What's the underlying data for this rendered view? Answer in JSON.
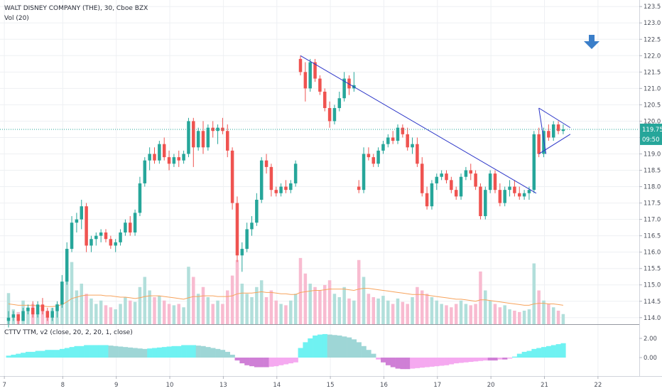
{
  "legend": {
    "main": "WALT DISNEY COMPANY (THE), 30, Cboe BZX",
    "volume": "Vol (20)",
    "indicator": "CTTV TTM, v2 (close, 20, 2, 20, 1, close)"
  },
  "price_tag": {
    "value": "119.75",
    "countdown": "09:50",
    "color": "#26a69a"
  },
  "colors": {
    "up": "#26a69a",
    "down": "#ef5350",
    "vol_up": "#b2dfdb",
    "vol_down": "#f8bbd0",
    "vol_ma": "#f7a35c",
    "trendline": "#2b35c8",
    "mom_pos": "#6ff2f2",
    "mom_pos_dark": "#9ed6d6",
    "mom_neg": "#f5a9f0",
    "mom_neg_dark": "#cf7fd6",
    "arrow": "#3a7ec9"
  },
  "chart_data": {
    "type": "candlestick",
    "x_ticks": [
      "7",
      "8",
      "9",
      "10",
      "13",
      "14",
      "15",
      "16",
      "17",
      "20",
      "21",
      "22"
    ],
    "price_axis": {
      "ticks": [
        114.0,
        114.5,
        115.0,
        115.5,
        116.0,
        116.5,
        117.0,
        117.5,
        118.0,
        118.5,
        119.0,
        119.5,
        120.0,
        120.5,
        121.0,
        121.5,
        122.0,
        122.5,
        123.0,
        123.5
      ],
      "range": [
        113.8,
        123.7
      ]
    },
    "indicator_axis": {
      "ticks": [
        2.0,
        0.0
      ],
      "labels": [
        "2.00",
        "0.00"
      ]
    },
    "volume_ma_base": 114.6,
    "candles": [
      [
        113.9,
        114.2,
        113.7,
        114.0
      ],
      [
        114.0,
        114.2,
        113.9,
        114.1
      ],
      [
        114.1,
        114.1,
        113.8,
        113.9
      ],
      [
        113.9,
        114.3,
        113.9,
        114.2
      ],
      [
        114.2,
        114.4,
        114.1,
        114.3
      ],
      [
        114.3,
        114.5,
        114.0,
        114.1
      ],
      [
        114.1,
        114.5,
        114.0,
        114.4
      ],
      [
        114.4,
        114.6,
        114.1,
        114.2
      ],
      [
        114.2,
        114.3,
        113.9,
        114.0
      ],
      [
        114.0,
        114.3,
        113.9,
        114.2
      ],
      [
        114.2,
        114.5,
        114.0,
        114.4
      ],
      [
        114.4,
        115.3,
        114.3,
        115.1
      ],
      [
        115.1,
        116.3,
        115.0,
        116.1
      ],
      [
        116.1,
        117.1,
        116.0,
        116.9
      ],
      [
        116.9,
        117.2,
        116.6,
        117.0
      ],
      [
        117.0,
        117.6,
        116.7,
        117.4
      ],
      [
        117.4,
        117.5,
        116.0,
        116.2
      ],
      [
        116.2,
        116.5,
        116.0,
        116.4
      ],
      [
        116.4,
        116.6,
        116.2,
        116.5
      ],
      [
        116.5,
        116.7,
        116.3,
        116.6
      ],
      [
        116.6,
        116.7,
        116.3,
        116.4
      ],
      [
        116.4,
        116.5,
        116.1,
        116.2
      ],
      [
        116.2,
        116.4,
        116.0,
        116.3
      ],
      [
        116.3,
        116.7,
        116.2,
        116.6
      ],
      [
        116.6,
        117.0,
        116.5,
        116.9
      ],
      [
        116.9,
        117.1,
        116.5,
        116.6
      ],
      [
        116.6,
        117.3,
        116.5,
        117.2
      ],
      [
        117.2,
        118.3,
        117.1,
        118.1
      ],
      [
        118.1,
        118.9,
        118.0,
        118.8
      ],
      [
        118.8,
        119.2,
        118.5,
        119.0
      ],
      [
        119.0,
        119.2,
        118.7,
        118.8
      ],
      [
        118.8,
        119.4,
        118.7,
        119.3
      ],
      [
        119.3,
        119.5,
        118.8,
        118.9
      ],
      [
        118.9,
        119.1,
        118.5,
        118.7
      ],
      [
        118.7,
        119.0,
        118.6,
        118.9
      ],
      [
        118.9,
        119.1,
        118.6,
        118.8
      ],
      [
        118.8,
        119.1,
        118.7,
        119.0
      ],
      [
        119.0,
        120.1,
        118.9,
        120.0
      ],
      [
        120.0,
        120.1,
        118.6,
        119.2
      ],
      [
        119.2,
        119.8,
        119.1,
        119.7
      ],
      [
        119.7,
        120.0,
        119.0,
        119.2
      ],
      [
        119.2,
        119.9,
        119.1,
        119.8
      ],
      [
        119.8,
        120.0,
        119.5,
        119.7
      ],
      [
        119.7,
        119.9,
        119.3,
        119.8
      ],
      [
        119.8,
        120.1,
        119.6,
        119.7
      ],
      [
        119.7,
        119.9,
        118.9,
        119.1
      ],
      [
        119.1,
        119.2,
        117.3,
        117.5
      ],
      [
        117.5,
        117.7,
        115.7,
        115.9
      ],
      [
        115.9,
        116.3,
        115.4,
        116.1
      ],
      [
        116.1,
        116.9,
        116.0,
        116.7
      ],
      [
        116.7,
        117.1,
        116.5,
        116.9
      ],
      [
        116.9,
        117.8,
        116.8,
        117.6
      ],
      [
        117.6,
        118.9,
        117.5,
        118.8
      ],
      [
        118.8,
        119.0,
        118.4,
        118.6
      ],
      [
        118.6,
        118.7,
        117.7,
        117.9
      ],
      [
        117.9,
        118.0,
        117.7,
        117.8
      ],
      [
        117.8,
        118.1,
        117.7,
        118.0
      ],
      [
        118.0,
        118.2,
        117.8,
        117.9
      ],
      [
        117.9,
        118.2,
        117.8,
        118.1
      ],
      [
        118.1,
        118.8,
        118.0,
        118.7
      ],
      [
        121.9,
        122.0,
        121.4,
        121.5
      ],
      [
        121.5,
        121.8,
        120.6,
        121.0
      ],
      [
        121.0,
        121.9,
        120.9,
        121.8
      ],
      [
        121.8,
        121.9,
        121.2,
        121.3
      ],
      [
        121.3,
        121.4,
        120.8,
        120.9
      ],
      [
        120.9,
        121.0,
        120.3,
        120.4
      ],
      [
        120.4,
        120.6,
        119.8,
        120.0
      ],
      [
        120.0,
        120.5,
        119.9,
        120.4
      ],
      [
        120.4,
        120.9,
        120.3,
        120.7
      ],
      [
        120.7,
        121.5,
        120.6,
        121.3
      ],
      [
        121.3,
        121.4,
        120.8,
        121.0
      ],
      [
        121.0,
        121.5,
        120.9,
        121.1
      ],
      [
        118.0,
        118.2,
        117.8,
        117.9
      ],
      [
        117.9,
        119.2,
        117.8,
        119.0
      ],
      [
        119.0,
        119.2,
        118.8,
        118.9
      ],
      [
        118.9,
        119.0,
        118.6,
        118.7
      ],
      [
        118.7,
        119.2,
        118.6,
        119.1
      ],
      [
        119.1,
        119.4,
        119.0,
        119.3
      ],
      [
        119.3,
        119.6,
        119.2,
        119.5
      ],
      [
        119.5,
        119.7,
        119.3,
        119.4
      ],
      [
        119.4,
        119.9,
        119.3,
        119.8
      ],
      [
        119.8,
        119.9,
        119.5,
        119.6
      ],
      [
        119.6,
        119.8,
        119.1,
        119.2
      ],
      [
        119.2,
        119.5,
        119.0,
        119.3
      ],
      [
        119.3,
        119.5,
        118.6,
        118.7
      ],
      [
        118.7,
        118.9,
        117.7,
        117.8
      ],
      [
        117.8,
        118.0,
        117.3,
        117.4
      ],
      [
        117.4,
        118.2,
        117.3,
        118.1
      ],
      [
        118.1,
        118.4,
        117.9,
        118.3
      ],
      [
        118.3,
        118.5,
        118.2,
        118.4
      ],
      [
        118.4,
        118.5,
        118.1,
        118.2
      ],
      [
        118.2,
        118.3,
        117.8,
        117.9
      ],
      [
        117.9,
        118.0,
        117.6,
        117.7
      ],
      [
        117.7,
        118.4,
        117.6,
        118.3
      ],
      [
        118.3,
        118.6,
        118.2,
        118.5
      ],
      [
        118.5,
        118.7,
        118.2,
        118.4
      ],
      [
        118.4,
        118.5,
        117.9,
        118.0
      ],
      [
        118.0,
        118.1,
        117.0,
        117.1
      ],
      [
        117.1,
        118.0,
        117.0,
        117.9
      ],
      [
        117.9,
        118.5,
        117.8,
        118.4
      ],
      [
        118.4,
        118.5,
        117.8,
        117.9
      ],
      [
        117.9,
        118.1,
        117.4,
        117.5
      ],
      [
        117.5,
        118.0,
        117.4,
        117.9
      ],
      [
        117.9,
        118.2,
        117.7,
        118.0
      ],
      [
        118.0,
        118.2,
        117.7,
        117.8
      ],
      [
        117.8,
        118.0,
        117.6,
        117.7
      ],
      [
        117.7,
        117.9,
        117.6,
        117.8
      ],
      [
        117.8,
        118.0,
        117.6,
        117.9
      ],
      [
        117.9,
        119.7,
        117.8,
        119.6
      ],
      [
        119.6,
        119.8,
        118.9,
        119.0
      ],
      [
        119.0,
        119.8,
        118.9,
        119.7
      ],
      [
        119.7,
        119.9,
        119.4,
        119.5
      ],
      [
        119.5,
        120.0,
        119.4,
        119.9
      ],
      [
        119.9,
        120.0,
        119.6,
        119.7
      ],
      [
        119.7,
        119.9,
        119.6,
        119.75
      ]
    ],
    "volume": [
      0.46,
      0.22,
      0.18,
      0.35,
      0.25,
      0.3,
      0.15,
      0.28,
      0.2,
      0.24,
      0.3,
      0.52,
      0.8,
      0.92,
      0.5,
      0.6,
      0.45,
      0.38,
      0.3,
      0.35,
      0.28,
      0.25,
      0.22,
      0.3,
      0.4,
      0.35,
      0.33,
      0.55,
      0.7,
      0.5,
      0.4,
      0.42,
      0.35,
      0.3,
      0.28,
      0.3,
      0.25,
      0.85,
      0.7,
      0.45,
      0.55,
      0.4,
      0.3,
      0.35,
      0.3,
      0.5,
      0.72,
      0.95,
      0.6,
      0.45,
      0.4,
      0.55,
      0.65,
      0.4,
      0.5,
      0.35,
      0.3,
      0.28,
      0.35,
      0.45,
      0.98,
      0.75,
      0.6,
      0.55,
      0.5,
      0.58,
      0.65,
      0.45,
      0.4,
      0.55,
      0.38,
      0.35,
      0.95,
      0.7,
      0.45,
      0.4,
      0.38,
      0.42,
      0.35,
      0.3,
      0.38,
      0.33,
      0.3,
      0.4,
      0.55,
      0.5,
      0.45,
      0.4,
      0.35,
      0.3,
      0.28,
      0.25,
      0.3,
      0.35,
      0.3,
      0.28,
      0.3,
      0.78,
      0.5,
      0.35,
      0.3,
      0.25,
      0.28,
      0.22,
      0.2,
      0.18,
      0.2,
      0.22,
      0.9,
      0.5,
      0.35,
      0.3,
      0.25,
      0.2,
      0.15
    ],
    "volume_ma": [
      0.3,
      0.29,
      0.28,
      0.28,
      0.28,
      0.28,
      0.27,
      0.27,
      0.26,
      0.26,
      0.27,
      0.29,
      0.33,
      0.38,
      0.4,
      0.42,
      0.43,
      0.43,
      0.43,
      0.43,
      0.42,
      0.42,
      0.41,
      0.4,
      0.4,
      0.39,
      0.38,
      0.39,
      0.41,
      0.42,
      0.42,
      0.42,
      0.41,
      0.4,
      0.39,
      0.38,
      0.37,
      0.39,
      0.41,
      0.41,
      0.42,
      0.42,
      0.42,
      0.41,
      0.41,
      0.41,
      0.42,
      0.45,
      0.46,
      0.46,
      0.46,
      0.47,
      0.48,
      0.47,
      0.47,
      0.46,
      0.45,
      0.45,
      0.44,
      0.44,
      0.47,
      0.48,
      0.49,
      0.5,
      0.5,
      0.51,
      0.52,
      0.52,
      0.52,
      0.52,
      0.51,
      0.5,
      0.52,
      0.53,
      0.53,
      0.52,
      0.51,
      0.5,
      0.49,
      0.48,
      0.47,
      0.46,
      0.45,
      0.44,
      0.44,
      0.44,
      0.43,
      0.42,
      0.41,
      0.4,
      0.39,
      0.38,
      0.37,
      0.37,
      0.36,
      0.35,
      0.34,
      0.36,
      0.36,
      0.35,
      0.34,
      0.33,
      0.32,
      0.31,
      0.3,
      0.29,
      0.28,
      0.28,
      0.3,
      0.31,
      0.31,
      0.3,
      0.3,
      0.29,
      0.28
    ],
    "momentum": [
      0.2,
      0.3,
      0.4,
      0.5,
      0.6,
      0.6,
      0.7,
      0.7,
      0.8,
      0.8,
      0.8,
      0.9,
      1.0,
      1.1,
      1.2,
      1.2,
      1.3,
      1.3,
      1.3,
      1.3,
      1.3,
      1.25,
      1.2,
      1.15,
      1.1,
      1.05,
      1.0,
      0.95,
      0.9,
      0.95,
      1.0,
      1.05,
      1.1,
      1.15,
      1.2,
      1.2,
      1.3,
      1.3,
      1.3,
      1.25,
      1.2,
      1.1,
      1.0,
      0.9,
      0.8,
      0.6,
      0.3,
      -0.3,
      -0.6,
      -0.8,
      -0.9,
      -1.0,
      -1.0,
      -1.0,
      -0.95,
      -0.9,
      -0.8,
      -0.7,
      -0.6,
      -0.5,
      1.0,
      1.6,
      2.0,
      2.3,
      2.4,
      2.45,
      2.4,
      2.35,
      2.3,
      2.2,
      2.1,
      1.9,
      1.6,
      1.2,
      0.8,
      0.4,
      -0.2,
      -0.5,
      -0.8,
      -1.0,
      -1.15,
      -1.2,
      -1.2,
      -1.15,
      -1.1,
      -1.05,
      -1.0,
      -0.95,
      -0.9,
      -0.85,
      -0.8,
      -0.7,
      -0.6,
      -0.55,
      -0.5,
      -0.45,
      -0.4,
      -0.35,
      -0.3,
      -0.3,
      -0.3,
      -0.2,
      -0.2,
      -0.1,
      0.1,
      0.4,
      0.6,
      0.7,
      0.9,
      1.0,
      1.1,
      1.2,
      1.3,
      1.4,
      1.5
    ],
    "trendlines": [
      {
        "from": [
          60,
          122.0
        ],
        "to": [
          107,
          117.8
        ]
      },
      {
        "from": [
          109,
          120.4
        ],
        "to": [
          114,
          119.8
        ]
      },
      {
        "from": [
          109,
          119.0
        ],
        "to": [
          114,
          119.6
        ]
      },
      {
        "from": [
          109,
          120.4
        ],
        "to": [
          109,
          119.0
        ]
      }
    ],
    "reference_line": 119.75,
    "annotation": {
      "type": "arrow-down"
    }
  }
}
